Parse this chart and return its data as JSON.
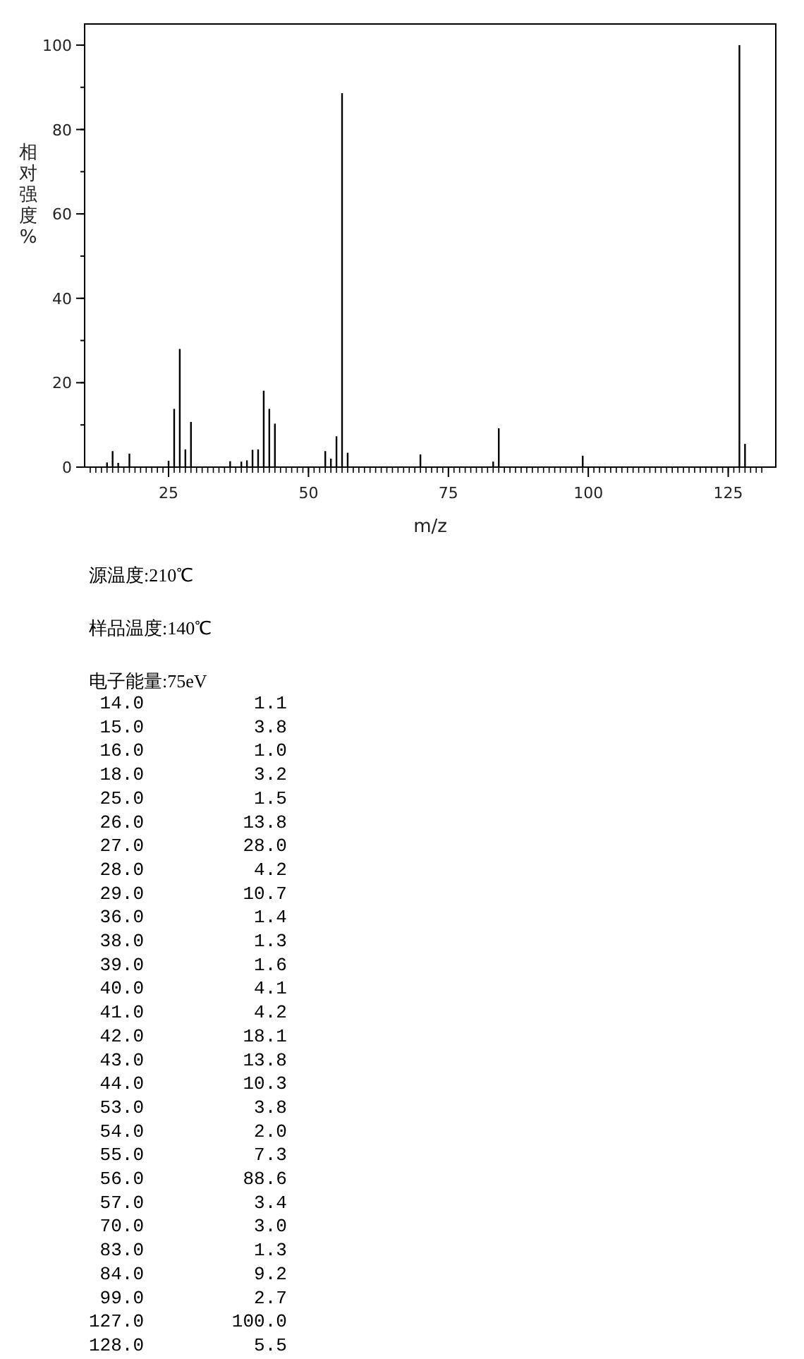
{
  "chart_data": {
    "type": "bar",
    "ylabel": "相对强度%",
    "xlabel": "m/z",
    "annotations": [
      "源温度:210℃",
      "样品温度:140℃",
      "电子能量:75eV",
      " 14.0          1.1",
      " 15.0          3.8",
      " 16.0          1.0",
      " 18.0          3.2",
      " 25.0          1.5",
      " 26.0         13.8",
      " 27.0         28.0",
      " 28.0          4.2",
      " 29.0         10.7",
      " 36.0          1.4",
      " 38.0          1.3",
      " 39.0          1.6",
      " 40.0          4.1",
      " 41.0          4.2",
      " 42.0         18.1",
      " 43.0         13.8",
      " 44.0         10.3",
      " 53.0          3.8",
      " 54.0          2.0",
      " 55.0          7.3",
      " 56.0         88.6",
      " 57.0          3.4",
      " 70.0          3.0",
      " 83.0          1.3",
      " 84.0          9.2",
      " 99.0          2.7",
      "127.0        100.0",
      "128.0          5.5"
    ],
    "x": [
      14,
      15,
      16,
      18,
      25,
      26,
      27,
      28,
      29,
      36,
      38,
      39,
      40,
      41,
      42,
      43,
      44,
      53,
      54,
      55,
      56,
      57,
      70,
      83,
      84,
      99,
      127,
      128
    ],
    "values": [
      1.1,
      3.8,
      1.0,
      3.2,
      1.5,
      13.8,
      28.0,
      4.2,
      10.7,
      1.4,
      1.3,
      1.6,
      4.1,
      4.2,
      18.1,
      13.8,
      10.3,
      3.8,
      2.0,
      7.3,
      88.6,
      3.4,
      3.0,
      1.3,
      9.2,
      2.7,
      100.0,
      5.5
    ],
    "color": "#000000",
    "xlim": [
      10,
      133.5
    ],
    "xticks": [
      25,
      50,
      75,
      100,
      125
    ],
    "ylim": [
      0,
      105
    ],
    "yticks": [
      0,
      20,
      40,
      60,
      80,
      100
    ],
    "grid": false
  }
}
